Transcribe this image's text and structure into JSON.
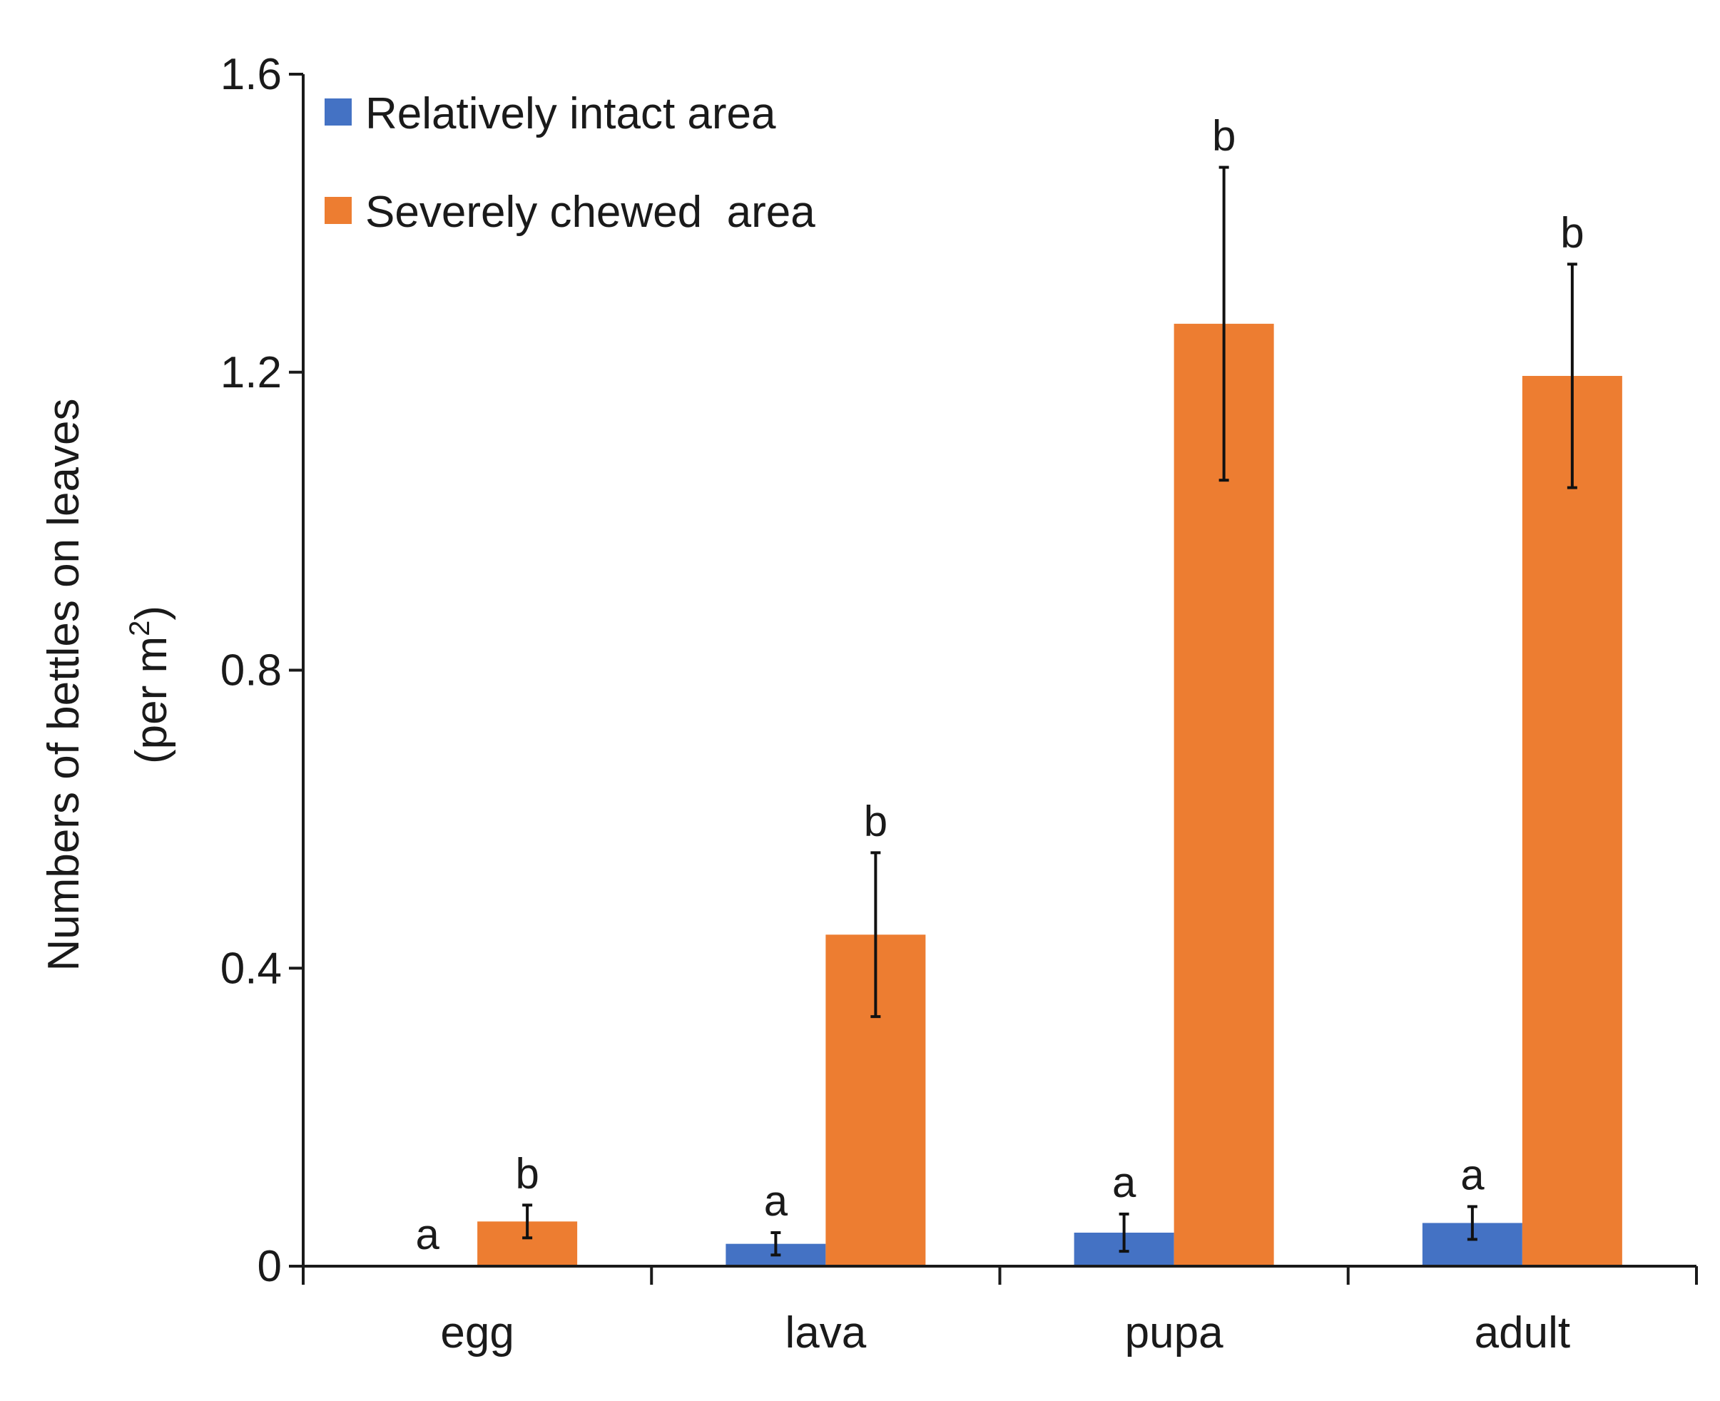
{
  "chart_data": {
    "type": "bar",
    "categories": [
      "egg",
      "lava",
      "pupa",
      "adult"
    ],
    "series": [
      {
        "name": "Relatively intact area",
        "color": "#4472C4",
        "values": [
          0,
          0.03,
          0.045,
          0.058
        ],
        "errors": [
          0,
          0.015,
          0.025,
          0.022
        ],
        "sig": [
          "a",
          "a",
          "a",
          "a"
        ]
      },
      {
        "name": "Severely chewed  area",
        "color": "#ED7D31",
        "values": [
          0.06,
          0.445,
          1.265,
          1.195
        ],
        "errors": [
          0.022,
          0.11,
          0.21,
          0.15
        ],
        "sig": [
          "b",
          "b",
          "b",
          "b"
        ]
      }
    ],
    "title": "",
    "xlabel": "",
    "ylabel": "Numbers of bettles on leaves",
    "ylabel_line2_prefix": "(per m",
    "ylabel_line2_sup": "2",
    "ylabel_line2_suffix": ")",
    "ylim": [
      0,
      1.6
    ],
    "yticks": [
      0,
      0.4,
      0.8,
      1.2,
      1.6
    ],
    "ytick_labels": [
      "0",
      "0.4",
      "0.8",
      "1.2",
      "1.6"
    ],
    "grid": false,
    "legend_position": "top-left"
  }
}
